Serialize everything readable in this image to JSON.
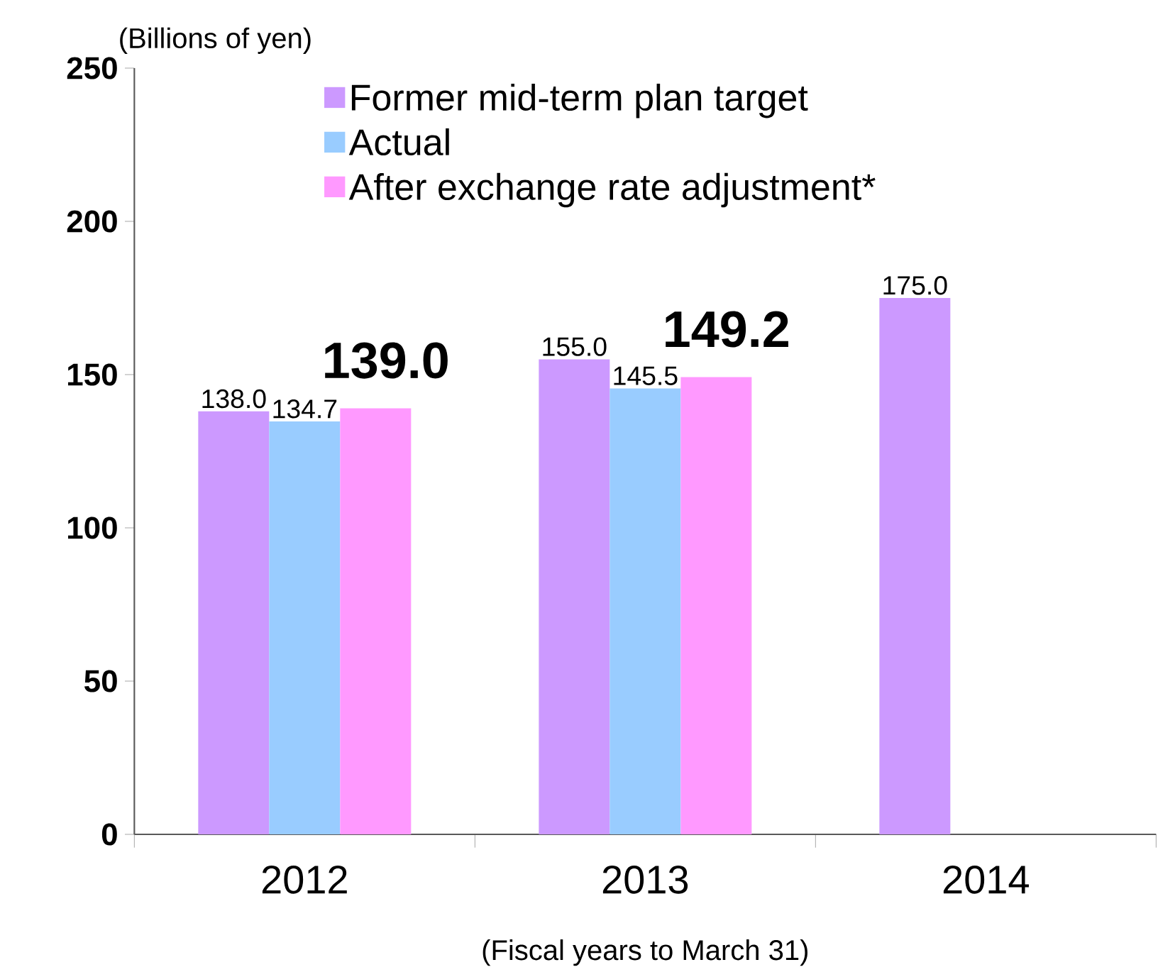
{
  "chart_data": {
    "type": "bar",
    "xlabel": "(Fiscal years to March 31)",
    "ylabel": "(Billions of yen)",
    "categories": [
      "2012",
      "2013",
      "2014"
    ],
    "series": [
      {
        "name": "Former mid-term plan target",
        "color": "#cc99ff",
        "values": [
          138.0,
          155.0,
          175.0
        ],
        "value_labels": [
          "138.0",
          "155.0",
          "175.0"
        ]
      },
      {
        "name": "Actual",
        "color": "#99ccff",
        "values": [
          134.7,
          145.5,
          null
        ],
        "value_labels": [
          "134.7",
          "145.5",
          null
        ]
      },
      {
        "name": "After exchange rate adjustment*",
        "color": "#ff99ff",
        "values": [
          139.0,
          149.2,
          null
        ],
        "value_labels": [
          "139.0",
          "149.2",
          null
        ]
      }
    ],
    "ylim": [
      0,
      250
    ],
    "yticks": [
      0,
      50,
      100,
      150,
      200,
      250
    ],
    "legend": "top",
    "grid": false
  }
}
